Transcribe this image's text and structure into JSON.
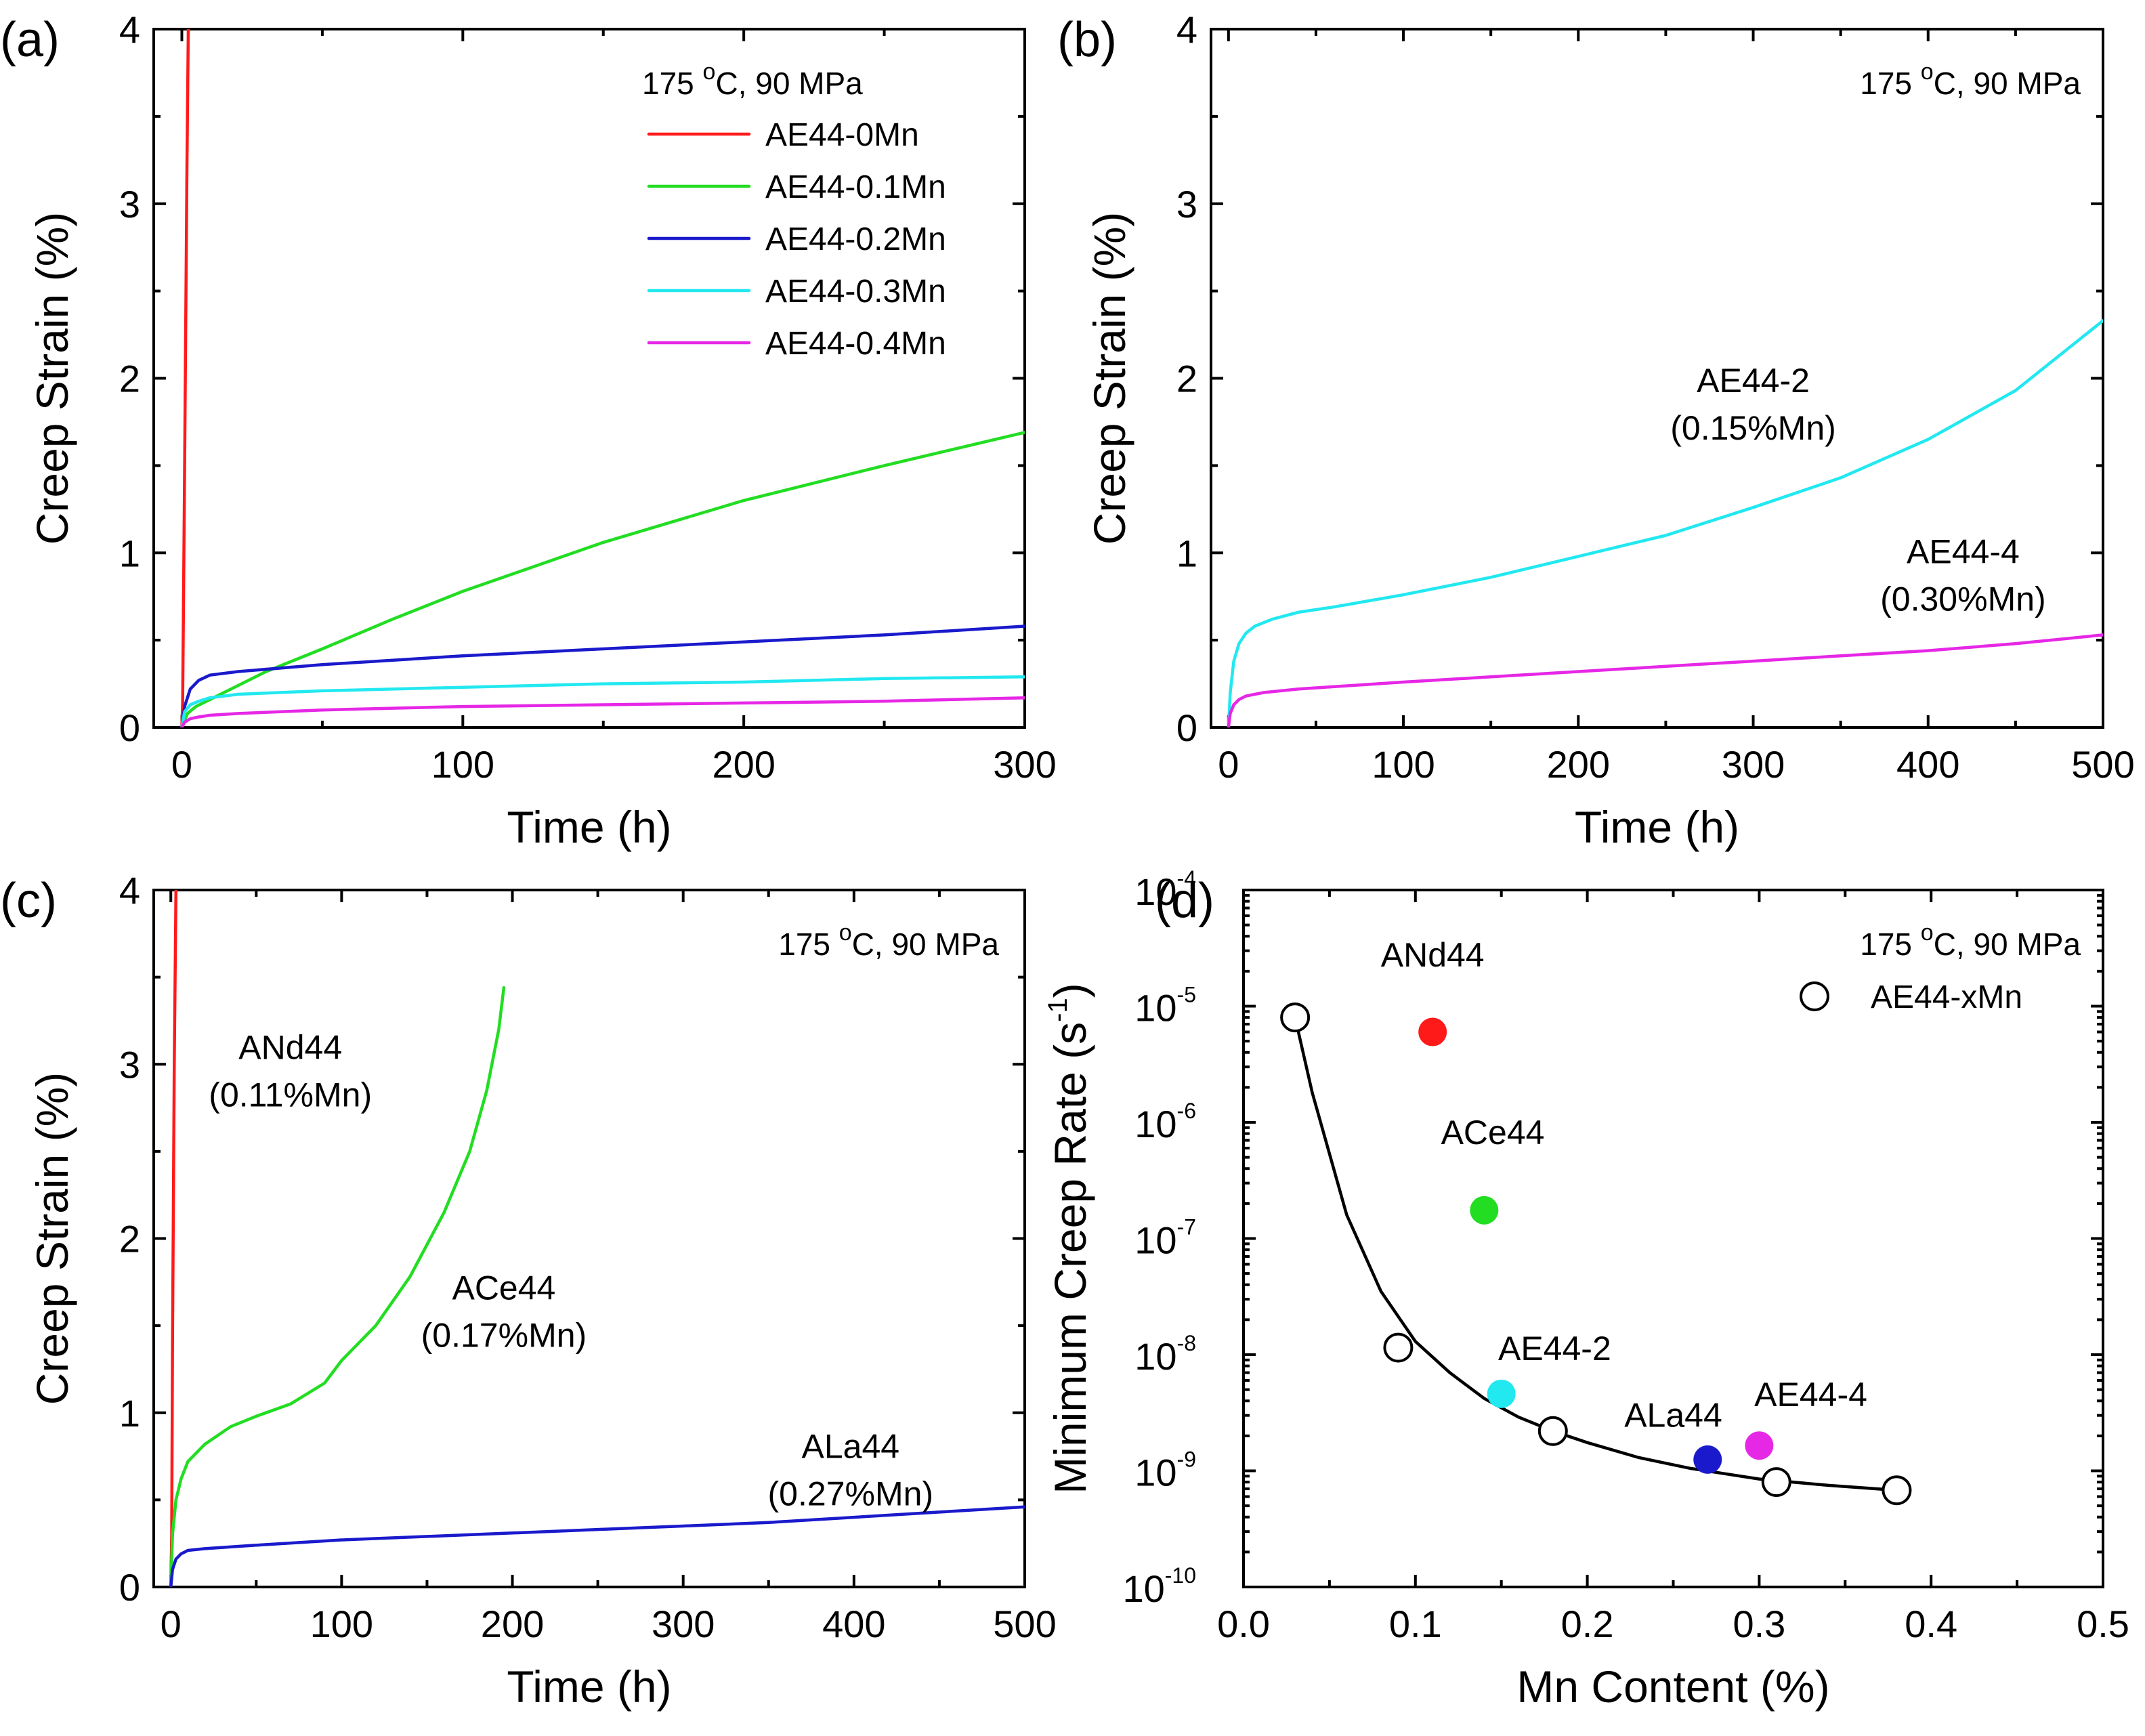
{
  "colors": {
    "red": "#ff1a1a",
    "green": "#22dd22",
    "blue": "#1a1acc",
    "cyan": "#22e8f0",
    "magenta": "#e627e6",
    "black": "#000000"
  },
  "chart_data": [
    {
      "id": "a",
      "type": "line",
      "panel_label": "(a)",
      "xlabel": "Time (h)",
      "ylabel": "Creep Strain (%)",
      "xlim": [
        -10,
        300
      ],
      "ylim": [
        0,
        4
      ],
      "xticks": [
        0,
        100,
        200,
        300
      ],
      "yticks": [
        0,
        1,
        2,
        3,
        4
      ],
      "condition": {
        "base": "175 ",
        "sup": "o",
        "rest": "C, 90 MPa"
      },
      "legend_position": "top-right",
      "series": [
        {
          "name": "AE44-0Mn",
          "color": "red",
          "x": [
            0,
            0.3,
            1,
            1.8,
            2.3
          ],
          "y": [
            0.0,
            0.15,
            1.5,
            3.2,
            4.0
          ]
        },
        {
          "name": "AE44-0.1Mn",
          "color": "green",
          "x": [
            0,
            2,
            5,
            10,
            20,
            30,
            50,
            75,
            100,
            150,
            200,
            250,
            300
          ],
          "y": [
            0.0,
            0.08,
            0.12,
            0.16,
            0.24,
            0.32,
            0.45,
            0.62,
            0.78,
            1.06,
            1.3,
            1.5,
            1.69
          ]
        },
        {
          "name": "AE44-0.2Mn",
          "color": "blue",
          "x": [
            0,
            1,
            3,
            6,
            10,
            20,
            50,
            100,
            150,
            200,
            250,
            300
          ],
          "y": [
            0.0,
            0.12,
            0.22,
            0.27,
            0.3,
            0.32,
            0.36,
            0.41,
            0.45,
            0.49,
            0.53,
            0.58
          ]
        },
        {
          "name": "AE44-0.3Mn",
          "color": "cyan",
          "x": [
            0,
            1,
            3,
            6,
            10,
            20,
            50,
            100,
            150,
            200,
            250,
            300
          ],
          "y": [
            0.0,
            0.09,
            0.13,
            0.15,
            0.17,
            0.19,
            0.21,
            0.23,
            0.25,
            0.26,
            0.28,
            0.29
          ]
        },
        {
          "name": "AE44-0.4Mn",
          "color": "magenta",
          "x": [
            0,
            1,
            3,
            6,
            10,
            20,
            50,
            100,
            150,
            200,
            250,
            300
          ],
          "y": [
            0.0,
            0.03,
            0.05,
            0.06,
            0.07,
            0.08,
            0.1,
            0.12,
            0.13,
            0.14,
            0.15,
            0.17
          ]
        }
      ]
    },
    {
      "id": "b",
      "type": "line",
      "panel_label": "(b)",
      "xlabel": "Time (h)",
      "ylabel": "Creep Strain (%)",
      "xlim": [
        -10,
        500
      ],
      "ylim": [
        0,
        4
      ],
      "xticks": [
        0,
        100,
        200,
        300,
        400,
        500
      ],
      "yticks": [
        0,
        1,
        2,
        3,
        4
      ],
      "condition": {
        "base": "175 ",
        "sup": "o",
        "rest": "C, 90 MPa"
      },
      "series": [
        {
          "name": "AE44-2",
          "color": "cyan",
          "x": [
            0,
            1,
            3,
            6,
            10,
            15,
            25,
            40,
            60,
            100,
            150,
            200,
            250,
            300,
            350,
            400,
            450,
            500
          ],
          "y": [
            0.0,
            0.2,
            0.38,
            0.48,
            0.54,
            0.58,
            0.62,
            0.66,
            0.69,
            0.76,
            0.86,
            0.98,
            1.1,
            1.26,
            1.43,
            1.65,
            1.93,
            2.33
          ]
        },
        {
          "name": "AE44-4",
          "color": "magenta",
          "x": [
            0,
            1,
            3,
            6,
            10,
            20,
            40,
            70,
            100,
            150,
            200,
            250,
            300,
            350,
            400,
            450,
            500
          ],
          "y": [
            0.0,
            0.08,
            0.13,
            0.16,
            0.18,
            0.2,
            0.22,
            0.24,
            0.26,
            0.29,
            0.32,
            0.35,
            0.38,
            0.41,
            0.44,
            0.48,
            0.53
          ]
        }
      ],
      "annotations": [
        {
          "lines": [
            "AE44-2",
            "(0.15%Mn)"
          ],
          "x": 300,
          "y": 1.92
        },
        {
          "lines": [
            "AE44-4",
            "(0.30%Mn)"
          ],
          "x": 420,
          "y": 0.94
        }
      ]
    },
    {
      "id": "c",
      "type": "line",
      "panel_label": "(c)",
      "xlabel": "Time (h)",
      "ylabel": "Creep Strain (%)",
      "xlim": [
        -10,
        500
      ],
      "ylim": [
        0,
        4
      ],
      "xticks": [
        0,
        100,
        200,
        300,
        400,
        500
      ],
      "yticks": [
        0,
        1,
        2,
        3,
        4
      ],
      "condition": {
        "base": "175 ",
        "sup": "o",
        "rest": "C, 90 MPa"
      },
      "series": [
        {
          "name": "ANd44",
          "color": "red",
          "x": [
            0,
            0.5,
            1,
            2,
            3
          ],
          "y": [
            0.0,
            0.3,
            1.4,
            3.0,
            4.0
          ]
        },
        {
          "name": "ACe44",
          "color": "green",
          "x": [
            0,
            1,
            3,
            6,
            10,
            20,
            35,
            50,
            70,
            90,
            100,
            120,
            140,
            160,
            175,
            185,
            192,
            195
          ],
          "y": [
            0.0,
            0.3,
            0.5,
            0.62,
            0.72,
            0.82,
            0.92,
            0.98,
            1.05,
            1.17,
            1.3,
            1.5,
            1.78,
            2.15,
            2.5,
            2.85,
            3.2,
            3.44
          ]
        },
        {
          "name": "ALa44",
          "color": "blue",
          "x": [
            0,
            1,
            3,
            6,
            10,
            20,
            50,
            100,
            150,
            200,
            250,
            300,
            350,
            400,
            450,
            500
          ],
          "y": [
            0.0,
            0.1,
            0.16,
            0.19,
            0.21,
            0.22,
            0.24,
            0.27,
            0.29,
            0.31,
            0.33,
            0.35,
            0.37,
            0.4,
            0.43,
            0.46
          ]
        }
      ],
      "annotations": [
        {
          "lines": [
            "ANd44",
            "(0.11%Mn)"
          ],
          "x": 70,
          "y": 3.03
        },
        {
          "lines": [
            "ACe44",
            "(0.17%Mn)"
          ],
          "x": 195,
          "y": 1.65
        },
        {
          "lines": [
            "ALa44",
            "(0.27%Mn)"
          ],
          "x": 398,
          "y": 0.74
        }
      ]
    },
    {
      "id": "d",
      "type": "scatter",
      "panel_label": "(d)",
      "xlabel": "Mn Content (%)",
      "ylabel": "Minimum Creep Rate",
      "ylabel_unit": {
        "base": "(s",
        "sup": "-1",
        "close": ")"
      },
      "xlim": [
        0,
        0.5
      ],
      "ylim": [
        1e-10,
        0.0001
      ],
      "yscale": "log",
      "xticks": [
        "0.0",
        "0.1",
        "0.2",
        "0.3",
        "0.4",
        "0.5"
      ],
      "yticks": [
        {
          "exp": -10,
          "base": "10",
          "sup": "-10"
        },
        {
          "exp": -9,
          "base": "10",
          "sup": "-9"
        },
        {
          "exp": -8,
          "base": "10",
          "sup": "-8"
        },
        {
          "exp": -7,
          "base": "10",
          "sup": "-7"
        },
        {
          "exp": -6,
          "base": "10",
          "sup": "-6"
        },
        {
          "exp": -5,
          "base": "10",
          "sup": "-5"
        },
        {
          "exp": -4,
          "base": "10",
          "sup": "-4"
        }
      ],
      "condition": {
        "base": "175 ",
        "sup": "o",
        "rest": "C, 90 MPa"
      },
      "legend": {
        "label": "AE44-xMn",
        "marker": "open-circle",
        "position": "top-right"
      },
      "open_points": {
        "x": [
          0.03,
          0.09,
          0.18,
          0.31,
          0.38
        ],
        "y": [
          8e-06,
          1.15e-08,
          2.2e-09,
          8e-10,
          6.8e-10
        ]
      },
      "fit_curve": {
        "x": [
          0.03,
          0.04,
          0.06,
          0.08,
          0.1,
          0.12,
          0.14,
          0.16,
          0.18,
          0.2,
          0.23,
          0.26,
          0.3,
          0.34,
          0.38
        ],
        "y": [
          8e-06,
          1.8e-06,
          1.6e-07,
          3.5e-08,
          1.3e-08,
          7e-09,
          4.2e-09,
          2.9e-09,
          2.2e-09,
          1.75e-09,
          1.3e-09,
          1.05e-09,
          8.5e-10,
          7.5e-10,
          6.8e-10
        ]
      },
      "filled_points": [
        {
          "name": "ANd44",
          "x": 0.11,
          "y": 6e-06,
          "color": "red"
        },
        {
          "name": "ACe44",
          "x": 0.14,
          "y": 1.75e-07,
          "color": "green"
        },
        {
          "name": "AE44-2",
          "x": 0.15,
          "y": 4.6e-09,
          "color": "cyan"
        },
        {
          "name": "ALa44",
          "x": 0.27,
          "y": 1.25e-09,
          "color": "blue"
        },
        {
          "name": "AE44-4",
          "x": 0.3,
          "y": 1.65e-09,
          "color": "magenta"
        }
      ],
      "annotations": [
        {
          "text": "ANd44",
          "x": 0.11,
          "y": 2.2e-05
        },
        {
          "text": "ACe44",
          "x": 0.145,
          "y": 6.5e-07
        },
        {
          "text": "AE44-2",
          "x": 0.181,
          "y": 9e-09
        },
        {
          "text": "ALa44",
          "x": 0.25,
          "y": 2.4e-09
        },
        {
          "text": "AE44-4",
          "x": 0.33,
          "y": 3.6e-09
        }
      ]
    }
  ]
}
